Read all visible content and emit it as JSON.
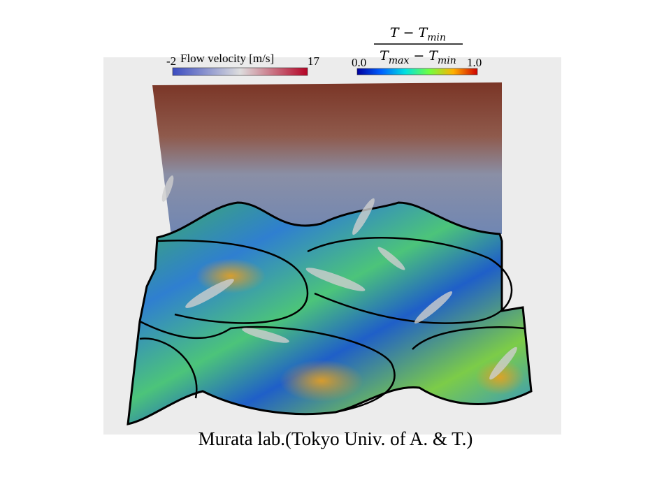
{
  "colorbars": {
    "velocity": {
      "min": "-2",
      "label": "Flow velocity [m/s]",
      "max": "17"
    },
    "temperature": {
      "min": "0.0",
      "max": "1.0",
      "numerator": {
        "text": "T − T",
        "sub": "min"
      },
      "denominator": {
        "text1": "T",
        "sub1": "max",
        "text2": " − T",
        "sub2": "min"
      }
    }
  },
  "caption": "Murata lab.(Tokyo Univ. of A. & T.)"
}
